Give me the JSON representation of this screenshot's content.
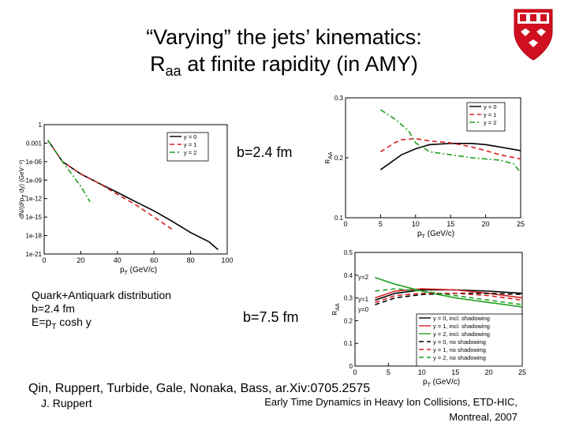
{
  "slide": {
    "title_line1": "“Varying” the jets’ kinematics:",
    "title_line2_pre": "R",
    "title_line2_sub": "aa",
    "title_line2_post": " at finite rapidity (in AMY)",
    "note_line1": "Quark+Antiquark distribution",
    "note_line2": "b=2.4 fm",
    "note_line3_pre": "E=p",
    "note_line3_sub": "T",
    "note_line3_post": " cosh y",
    "b1_label": "b=2.4 fm",
    "b2_label": "b=7.5 fm",
    "refs": "Qin, Ruppert, Turbide, Gale, Nonaka, Bass, ar.Xiv:0705.2575",
    "author": "J. Ruppert",
    "conf_line1": "Early Time Dynamics in Heavy Ion Collisions, ETD-HIC,",
    "conf_line2": "Montreal, 2007",
    "logo": "university-crest-icon"
  },
  "chart_data": [
    {
      "type": "line",
      "xlabel": "p_T (GeV/c)",
      "ylabel": "dN/(d²p_T dy) (GeV⁻²)",
      "y_scale": "log",
      "xlim": [
        0,
        100
      ],
      "x_ticks": [
        "0",
        "20",
        "40",
        "60",
        "80",
        "100"
      ],
      "y_ticks": [
        "1",
        "0.001",
        "1e-06",
        "1e-09",
        "1e-12",
        "1e-15",
        "1e-18",
        "1e-21"
      ],
      "legend_position": "top-right",
      "series": [
        {
          "name": "y = 0",
          "color": "#000000",
          "dash": "solid",
          "x": [
            2,
            10,
            20,
            30,
            40,
            50,
            60,
            70,
            80,
            90,
            95
          ],
          "y": [
            0.003,
            1e-06,
            1e-08,
            3e-10,
            1e-11,
            3e-13,
            1e-14,
            2e-16,
            3e-18,
            1e-19,
            5e-21
          ]
        },
        {
          "name": "y = 1",
          "color": "#d62020",
          "dash": "dashed",
          "x": [
            2,
            10,
            20,
            30,
            40,
            50,
            60,
            70
          ],
          "y": [
            0.003,
            1e-06,
            1e-08,
            3e-10,
            5e-12,
            1e-13,
            1e-15,
            1e-17
          ]
        },
        {
          "name": "y = 2",
          "color": "#22a022",
          "dash": "dashdot",
          "x": [
            2,
            10,
            15,
            20,
            25
          ],
          "y": [
            0.003,
            1e-06,
            1e-08,
            1e-10,
            3e-13
          ]
        }
      ]
    },
    {
      "type": "line",
      "xlabel": "p_T (GeV/c)",
      "ylabel": "R_AA",
      "xlim": [
        0,
        25
      ],
      "ylim": [
        0.1,
        0.3
      ],
      "x_ticks": [
        "0",
        "5",
        "10",
        "15",
        "20",
        "25"
      ],
      "y_ticks": [
        "0.1",
        "0.2",
        "0.3"
      ],
      "legend_position": "top-right",
      "series": [
        {
          "name": "y = 0",
          "color": "#000000",
          "dash": "solid",
          "x": [
            5,
            8,
            10,
            12,
            15,
            18,
            20,
            22,
            25
          ],
          "y": [
            0.18,
            0.205,
            0.215,
            0.222,
            0.224,
            0.224,
            0.222,
            0.218,
            0.212
          ]
        },
        {
          "name": "y = 1",
          "color": "#d62020",
          "dash": "dashed",
          "x": [
            5,
            7,
            8,
            10,
            12,
            15,
            18,
            20,
            22,
            25
          ],
          "y": [
            0.21,
            0.225,
            0.23,
            0.232,
            0.228,
            0.225,
            0.218,
            0.212,
            0.205,
            0.198
          ]
        },
        {
          "name": "y = 2",
          "color": "#22a022",
          "dash": "dashdot",
          "x": [
            5,
            7,
            9,
            10,
            12,
            15,
            18,
            20,
            22,
            24,
            25
          ],
          "y": [
            0.28,
            0.265,
            0.245,
            0.225,
            0.21,
            0.205,
            0.2,
            0.198,
            0.196,
            0.19,
            0.175
          ]
        }
      ]
    },
    {
      "type": "line",
      "xlabel": "p_T (GeV/c)",
      "ylabel": "R_AA",
      "xlim": [
        0,
        25
      ],
      "ylim": [
        0,
        0.5
      ],
      "x_ticks": [
        "0",
        "5",
        "10",
        "15",
        "20",
        "25"
      ],
      "y_ticks": [
        "0",
        "0.1",
        "0.2",
        "0.3",
        "0.4",
        "0.5"
      ],
      "annotations": [
        "y=2",
        "y=1",
        "y=0"
      ],
      "legend_position": "bottom-right",
      "series": [
        {
          "name": "y = 0, incl. shadowing",
          "color": "#000000",
          "dash": "solid",
          "x": [
            3,
            6,
            10,
            15,
            20,
            25
          ],
          "y": [
            0.29,
            0.32,
            0.335,
            0.335,
            0.33,
            0.32
          ]
        },
        {
          "name": "y = 1, incl. shadowing",
          "color": "#d62020",
          "dash": "solid",
          "x": [
            3,
            6,
            10,
            15,
            20,
            25
          ],
          "y": [
            0.3,
            0.33,
            0.34,
            0.335,
            0.32,
            0.3
          ]
        },
        {
          "name": "y = 2, incl. shadowing",
          "color": "#22a022",
          "dash": "solid",
          "x": [
            3,
            6,
            10,
            15,
            20,
            25
          ],
          "y": [
            0.39,
            0.36,
            0.33,
            0.3,
            0.28,
            0.26
          ]
        },
        {
          "name": "y = 0, no shadowing",
          "color": "#000000",
          "dash": "dashed",
          "x": [
            3,
            6,
            10,
            15,
            20,
            25
          ],
          "y": [
            0.27,
            0.3,
            0.315,
            0.32,
            0.32,
            0.315
          ]
        },
        {
          "name": "y = 1, no shadowing",
          "color": "#d62020",
          "dash": "dashed",
          "x": [
            3,
            6,
            10,
            15,
            20,
            25
          ],
          "y": [
            0.28,
            0.31,
            0.32,
            0.32,
            0.31,
            0.29
          ]
        },
        {
          "name": "y = 2, no shadowing",
          "color": "#22a022",
          "dash": "dashed",
          "x": [
            3,
            6,
            10,
            15,
            20,
            25
          ],
          "y": [
            0.33,
            0.34,
            0.33,
            0.31,
            0.29,
            0.27
          ]
        }
      ]
    }
  ]
}
